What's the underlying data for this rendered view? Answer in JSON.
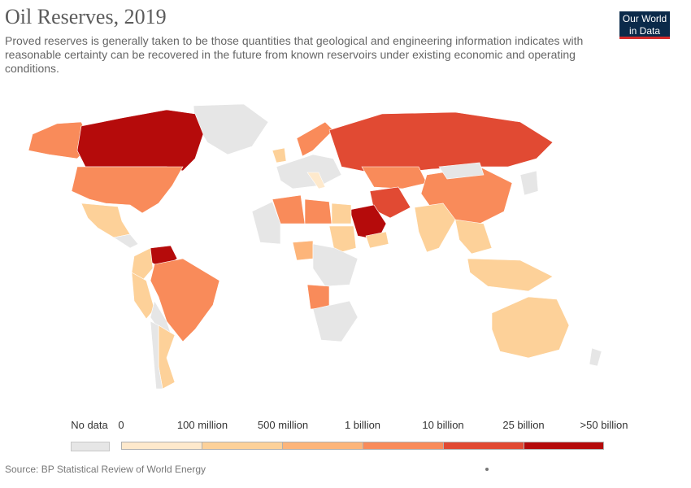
{
  "header": {
    "title": "Oil Reserves, 2019",
    "subtitle": "Proved reserves is generally taken to be those quantities that geological and engineering information indicates with reasonable certainty can be recovered in the future from known reservoirs under existing economic and operating conditions."
  },
  "logo": {
    "line1": "Our World",
    "line2": "in Data"
  },
  "legend": {
    "no_data": "No data",
    "no_data_color": "#e6e6e6",
    "labels": [
      "0",
      "100 million",
      "500 million",
      "1 billion",
      "10 billion",
      "25 billion",
      ">50 billion"
    ],
    "colors": [
      "#fee9cc",
      "#fdd199",
      "#fdb57a",
      "#f98b5a",
      "#e14a33",
      "#b50b0b"
    ]
  },
  "footer": {
    "source": "Source: BP Statistical Review of World Energy"
  }
}
